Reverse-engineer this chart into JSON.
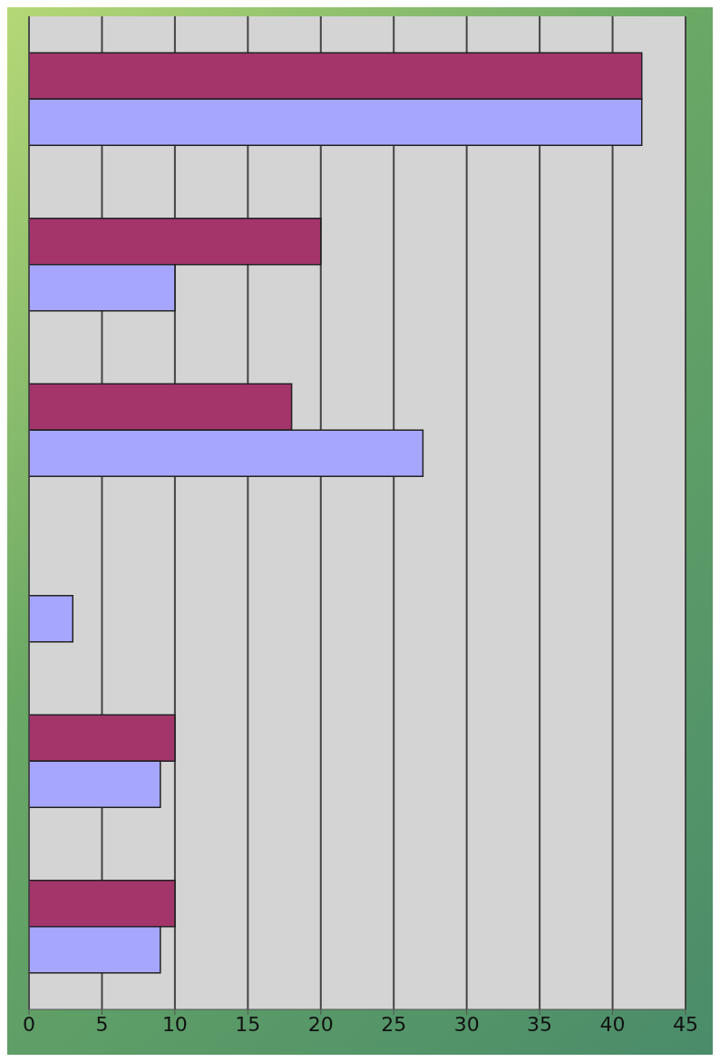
{
  "chart_data": {
    "type": "bar",
    "orientation": "horizontal",
    "categories": [
      null,
      null,
      null,
      null,
      null,
      null
    ],
    "series": [
      {
        "color": "#a3356b",
        "values": [
          42,
          20,
          18,
          null,
          10,
          10
        ]
      },
      {
        "color": "#a6a6ff",
        "values": [
          42,
          10,
          27,
          3,
          9,
          9
        ]
      }
    ],
    "xlim": [
      0,
      45
    ],
    "xticks": [
      0,
      5,
      10,
      15,
      20,
      25,
      30,
      35,
      40,
      45
    ],
    "grid": "x",
    "legend": false
  }
}
